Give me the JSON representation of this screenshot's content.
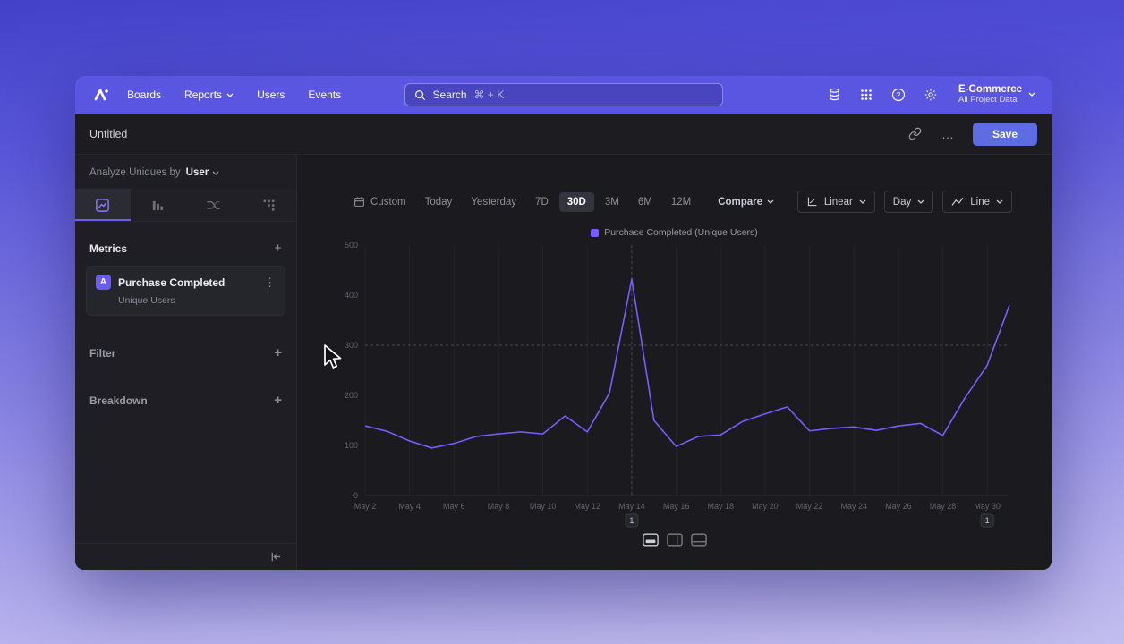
{
  "colors": {
    "accent": "#7a5cff",
    "nav": "#5a56e2",
    "save": "#5d6ce0"
  },
  "topnav": {
    "items": [
      "Boards",
      "Reports",
      "Users",
      "Events"
    ],
    "search_label": "Search",
    "search_shortcut": "⌘ + K",
    "project_name": "E-Commerce",
    "project_subtitle": "All Project Data"
  },
  "header": {
    "title": "Untitled",
    "ellipsis": "…",
    "save_label": "Save"
  },
  "sidebar": {
    "analyze_label": "Analyze Uniques by",
    "analyze_value": "User",
    "metrics_label": "Metrics",
    "add_symbol": "+",
    "metric_badge": "A",
    "metric_title": "Purchase Completed",
    "metric_subtitle": "Unique Users",
    "kebab": "⋮",
    "filter_label": "Filter",
    "breakdown_label": "Breakdown"
  },
  "toolbar": {
    "date_buttons": [
      "Custom",
      "Today",
      "Yesterday",
      "7D",
      "30D",
      "3M",
      "6M",
      "12M"
    ],
    "active_button": "30D",
    "compare_label": "Compare",
    "linear_label": "Linear",
    "day_label": "Day",
    "line_label": "Line"
  },
  "chart_data": {
    "type": "line",
    "legend": [
      "Purchase Completed (Unique Users)"
    ],
    "x": [
      "May 2",
      "May 3",
      "May 4",
      "May 5",
      "May 6",
      "May 7",
      "May 8",
      "May 9",
      "May 10",
      "May 11",
      "May 12",
      "May 13",
      "May 14",
      "May 15",
      "May 16",
      "May 17",
      "May 18",
      "May 19",
      "May 20",
      "May 21",
      "May 22",
      "May 23",
      "May 24",
      "May 25",
      "May 26",
      "May 27",
      "May 28",
      "May 29",
      "May 30",
      "May 31"
    ],
    "tick_every": 2,
    "ylim": [
      0,
      500
    ],
    "yticks": [
      0,
      100,
      200,
      300,
      400,
      500
    ],
    "series": [
      {
        "name": "Purchase Completed (Unique Users)",
        "color": "#7a5cff",
        "values": [
          139,
          128,
          109,
          95,
          104,
          118,
          123,
          127,
          123,
          159,
          127,
          205,
          432,
          150,
          98,
          118,
          121,
          148,
          163,
          177,
          129,
          134,
          137,
          130,
          139,
          144,
          120,
          195,
          260,
          380
        ]
      }
    ],
    "annotations": [
      {
        "label": "1",
        "index": 12
      },
      {
        "label": "1",
        "index": 28
      }
    ],
    "crosshair": {
      "x_index": 12,
      "y_value": 300
    }
  }
}
